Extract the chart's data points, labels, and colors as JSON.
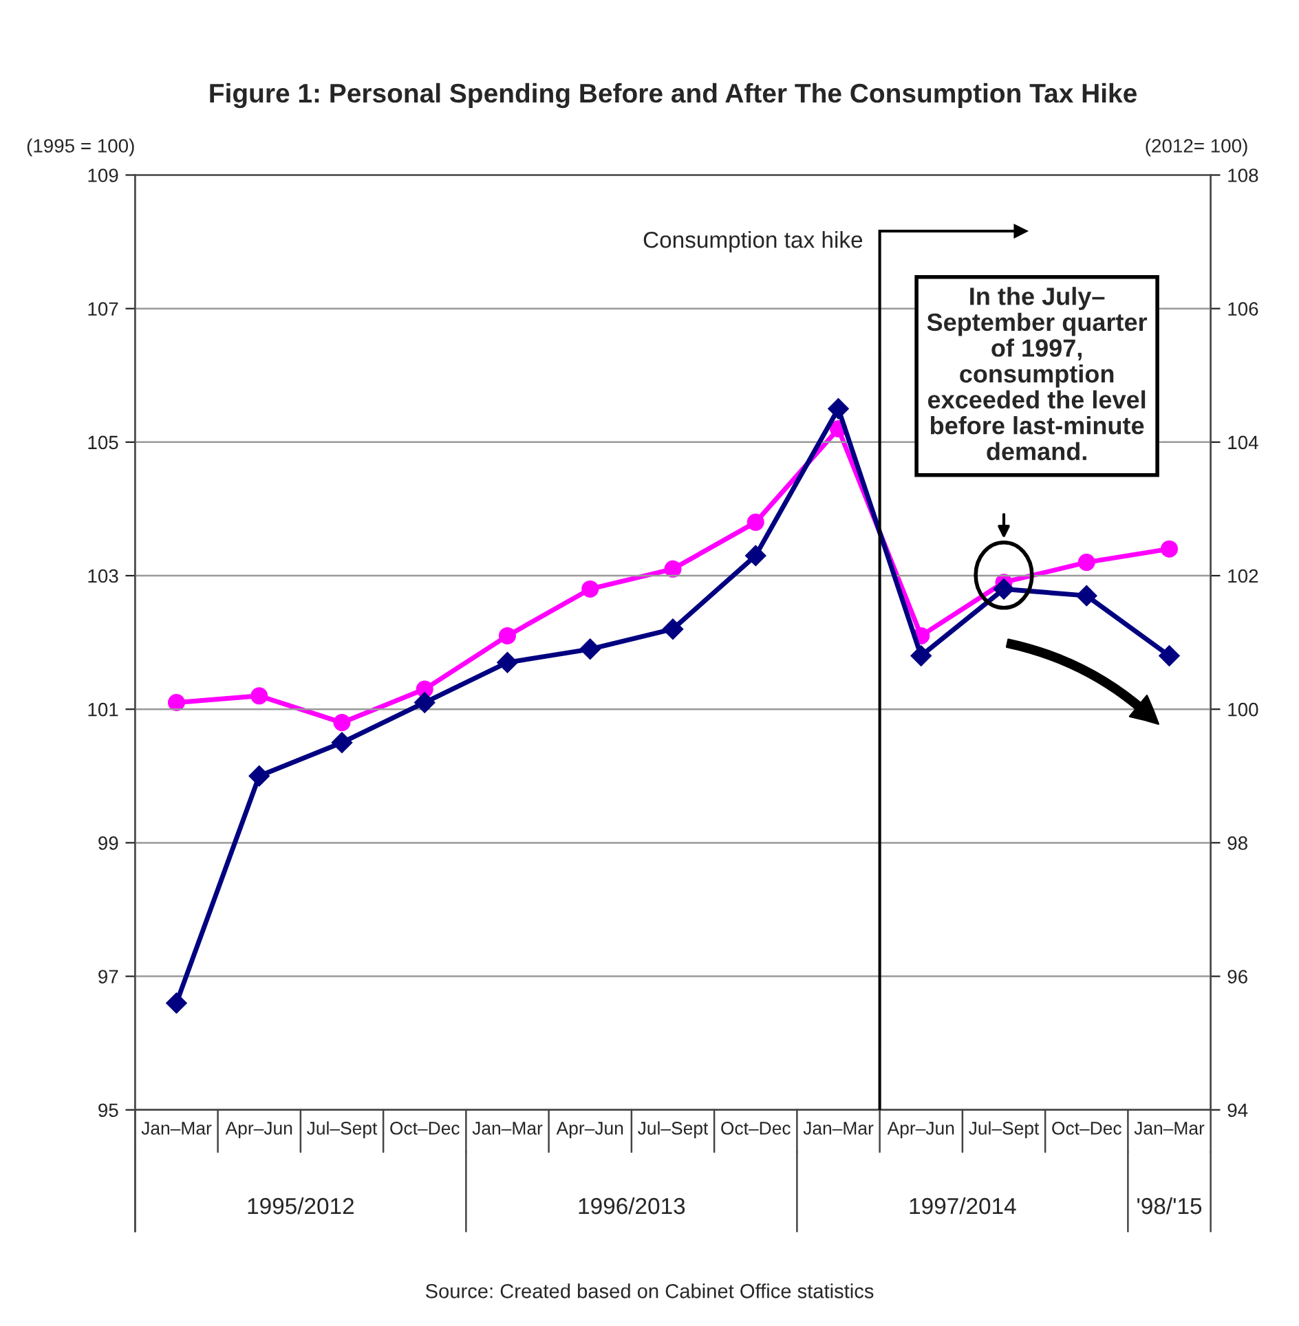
{
  "chart_data": {
    "type": "line",
    "title": "Figure 1: Personal Spending Before and After The Consumption Tax Hike",
    "ylabel": "(1995 = 100)",
    "y2label": "(2012= 100)",
    "categories": [
      "Jan–Mar",
      "Apr–Jun",
      "Jul–Sept",
      "Oct–Dec",
      "Jan–Mar",
      "Apr–Jun",
      "Jul–Sept",
      "Oct–Dec",
      "Jan–Mar",
      "Apr–Jun",
      "Jul–Sept",
      "Oct–Dec",
      "Jan–Mar"
    ],
    "series": [
      {
        "color": "#000080",
        "marker": "diamond",
        "values": [
          96.6,
          100.0,
          100.5,
          101.1,
          101.7,
          101.9,
          102.2,
          103.3,
          105.5,
          101.8,
          102.8,
          102.7,
          101.8
        ]
      },
      {
        "color": "#ff00ff",
        "marker": "circle",
        "axis": "y2",
        "values": [
          100.1,
          100.2,
          99.8,
          100.3,
          101.1,
          101.8,
          102.1,
          102.8,
          104.2,
          101.1,
          101.9,
          102.2,
          102.4
        ]
      }
    ],
    "ylim": [
      95,
      109
    ],
    "yticks": [
      95,
      97,
      99,
      101,
      103,
      105,
      107,
      109
    ],
    "y2lim": [
      94,
      108
    ],
    "y2ticks": [
      94,
      96,
      98,
      100,
      102,
      104,
      106,
      108
    ],
    "grid": "y",
    "line_style": "solid",
    "annotations": [
      "1995/2012",
      "1996/2013",
      "1997/2014",
      "'98/'15",
      "In the July–\nSeptember quarter\nof 1997,\nconsumption\nexceeded the level\nbefore last-minute\ndemand.",
      "Source: Created based on Cabinet Office statistics",
      "Consumption tax hike"
    ]
  }
}
